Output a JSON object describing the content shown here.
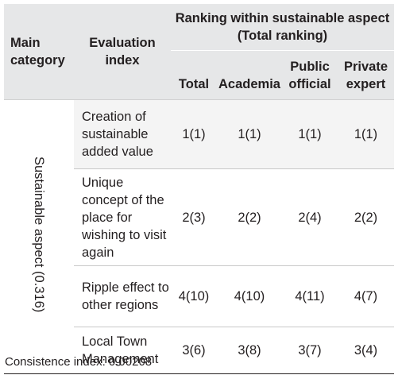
{
  "header": {
    "main_category": "Main category",
    "evaluation_index": "Evaluation index",
    "group_line1": "Ranking within sustainable aspect",
    "group_line2": "(Total ranking)",
    "sub_columns": [
      "Total",
      "Academia",
      "Public official",
      "Private expert"
    ]
  },
  "aspect_label": "Sustainable aspect (0.316)",
  "rows": [
    {
      "index": "Creation of sustainable added value",
      "values": [
        "1(1)",
        "1(1)",
        "1(1)",
        "1(1)"
      ]
    },
    {
      "index": "Unique concept of the place for wishing to visit again",
      "values": [
        "2(3)",
        "2(2)",
        "2(4)",
        "2(2)"
      ]
    },
    {
      "index": "Ripple effect to other regions",
      "values": [
        "4(10)",
        "4(10)",
        "4(11)",
        "4(7)"
      ]
    },
    {
      "index": "Local Town Management",
      "values": [
        "3(6)",
        "3(8)",
        "3(7)",
        "3(4)"
      ]
    }
  ],
  "note": "Consistence index: 0.00208"
}
